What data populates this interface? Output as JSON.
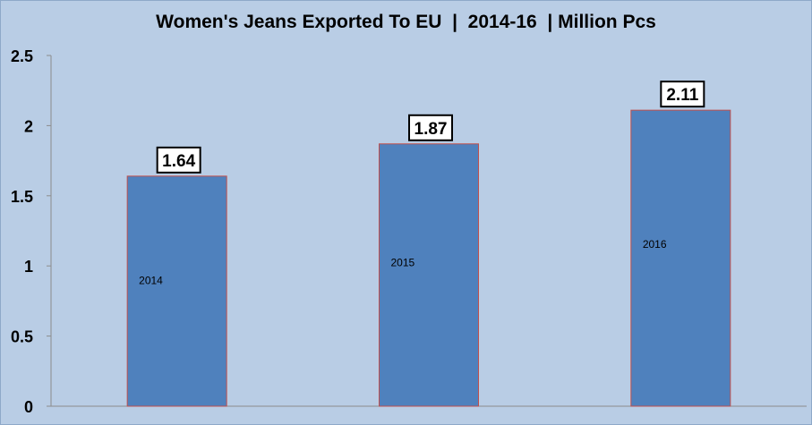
{
  "chart_data": {
    "type": "bar",
    "title": "Women's Jeans Exported To EU  |  2014-16  | Million Pcs",
    "categories": [
      "2014",
      "2015",
      "2016"
    ],
    "values": [
      1.64,
      1.87,
      2.11
    ],
    "value_labels": [
      "1.64",
      "1.87",
      "2.11"
    ],
    "ylim": [
      0,
      2.5
    ],
    "yticks": [
      "0",
      "0.5",
      "1",
      "1.5",
      "2",
      "2.5"
    ],
    "ytick_values": [
      0,
      0.5,
      1,
      1.5,
      2,
      2.5
    ],
    "grid": false,
    "legend": "none",
    "colors": {
      "background": "#b9cde5",
      "bar_fill": "#4f81bd",
      "bar_stroke": "#c0504d",
      "label_box": "#ffffff"
    }
  }
}
